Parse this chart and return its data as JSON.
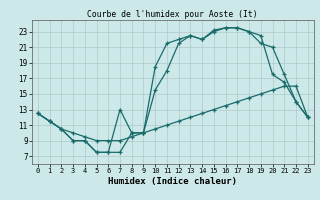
{
  "title": "Courbe de l'humidex pour Aoste (It)",
  "xlabel": "Humidex (Indice chaleur)",
  "bg_color": "#cce8e8",
  "grid_color": "#b0c8c8",
  "line_color": "#1a6b6b",
  "xlim": [
    -0.5,
    23.5
  ],
  "ylim": [
    6.0,
    24.5
  ],
  "xticks": [
    0,
    1,
    2,
    3,
    4,
    5,
    6,
    7,
    8,
    9,
    10,
    11,
    12,
    13,
    14,
    15,
    16,
    17,
    18,
    19,
    20,
    21,
    22,
    23
  ],
  "yticks": [
    7,
    9,
    11,
    13,
    15,
    17,
    19,
    21,
    23
  ],
  "line1_x": [
    0,
    1,
    2,
    3,
    4,
    5,
    6,
    7,
    8,
    9,
    10,
    11,
    12,
    13,
    14,
    15,
    16,
    17,
    18,
    19,
    20,
    21,
    22,
    23
  ],
  "line1_y": [
    12.5,
    11.5,
    10.5,
    10.0,
    9.5,
    9.0,
    9.0,
    9.0,
    9.5,
    10.0,
    10.5,
    11.0,
    11.5,
    12.0,
    12.5,
    13.0,
    13.5,
    14.0,
    14.5,
    15.0,
    15.5,
    16.0,
    16.0,
    12.0
  ],
  "line2_x": [
    0,
    1,
    2,
    3,
    4,
    5,
    6,
    7,
    8,
    9,
    10,
    11,
    12,
    13,
    14,
    15,
    16,
    17,
    18,
    19,
    20,
    21,
    22,
    23
  ],
  "line2_y": [
    12.5,
    11.5,
    10.5,
    9.0,
    9.0,
    7.5,
    7.5,
    7.5,
    10.0,
    10.0,
    18.5,
    21.5,
    22.0,
    22.5,
    22.0,
    23.0,
    23.5,
    23.5,
    23.0,
    21.5,
    21.0,
    17.5,
    14.0,
    12.0
  ],
  "line3_x": [
    0,
    1,
    2,
    3,
    4,
    5,
    6,
    7,
    8,
    9,
    10,
    11,
    12,
    13,
    14,
    15,
    16,
    17,
    18,
    19,
    20,
    21,
    22,
    23
  ],
  "line3_y": [
    12.5,
    11.5,
    10.5,
    9.0,
    9.0,
    7.5,
    7.5,
    13.0,
    10.0,
    10.0,
    15.5,
    18.0,
    21.5,
    22.5,
    22.0,
    23.2,
    23.5,
    23.5,
    23.0,
    22.5,
    17.5,
    16.5,
    14.0,
    12.0
  ]
}
